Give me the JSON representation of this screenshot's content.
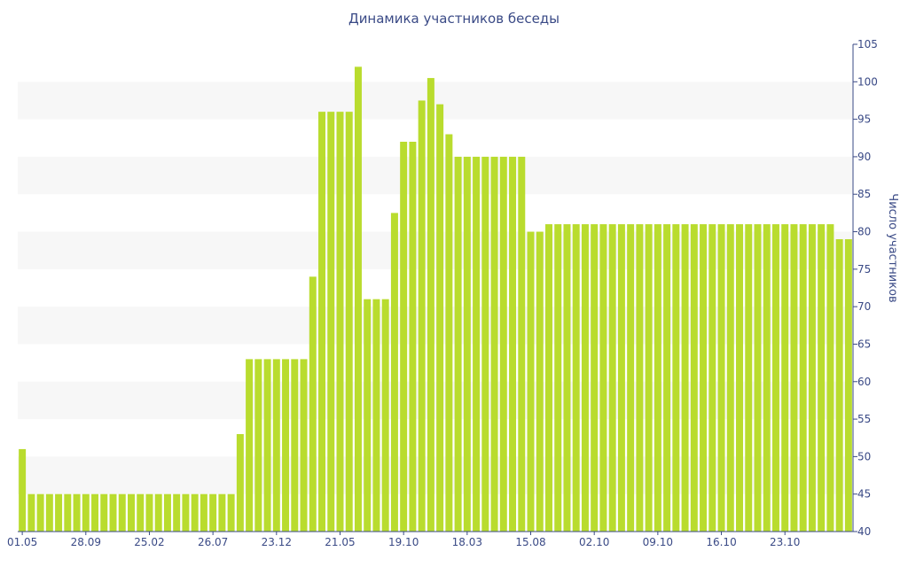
{
  "chart_data": {
    "type": "bar",
    "title": "Динамика участников беседы",
    "ylabel": "Число участников",
    "xlabel": "",
    "ylim": [
      40,
      105
    ],
    "y_ticks": [
      40,
      45,
      50,
      55,
      60,
      65,
      70,
      75,
      80,
      85,
      90,
      95,
      100,
      105
    ],
    "y_axis_side": "right",
    "grid": "alternating horizontal bands",
    "x_tick_labels": [
      {
        "index": 0,
        "label": "01.05"
      },
      {
        "index": 7,
        "label": "28.09"
      },
      {
        "index": 14,
        "label": "25.02"
      },
      {
        "index": 21,
        "label": "26.07"
      },
      {
        "index": 28,
        "label": "23.12"
      },
      {
        "index": 35,
        "label": "21.05"
      },
      {
        "index": 42,
        "label": "19.10"
      },
      {
        "index": 49,
        "label": "18.03"
      },
      {
        "index": 56,
        "label": "15.08"
      },
      {
        "index": 63,
        "label": "02.10"
      },
      {
        "index": 70,
        "label": "09.10"
      },
      {
        "index": 77,
        "label": "16.10"
      },
      {
        "index": 84,
        "label": "23.10"
      }
    ],
    "values": [
      51,
      45,
      45,
      45,
      45,
      45,
      45,
      45,
      45,
      45,
      45,
      45,
      45,
      45,
      45,
      45,
      45,
      45,
      45,
      45,
      45,
      45,
      45,
      45,
      53,
      63,
      63,
      63,
      63,
      63,
      63,
      63,
      74,
      96,
      96,
      96,
      96,
      102,
      71,
      71,
      71,
      82.5,
      92,
      92,
      97.5,
      100.5,
      97,
      93,
      90,
      90,
      90,
      90,
      90,
      90,
      90,
      90,
      80,
      80,
      81,
      81,
      81,
      81,
      81,
      81,
      81,
      81,
      81,
      81,
      81,
      81,
      81,
      81,
      81,
      81,
      81,
      81,
      81,
      81,
      81,
      81,
      81,
      81,
      81,
      81,
      81,
      81,
      81,
      81,
      81,
      81,
      79,
      79
    ],
    "colors": {
      "bar": "#b9dc2e",
      "band": "#f7f7f7",
      "axis": "#3a4a86",
      "text": "#3a4a86"
    }
  }
}
